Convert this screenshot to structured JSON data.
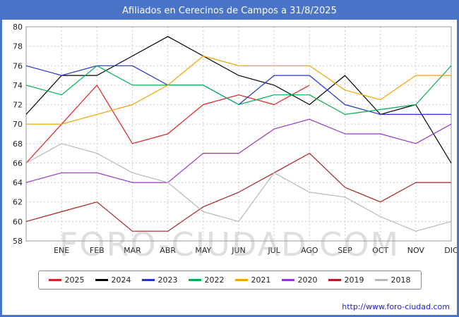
{
  "chart_data": {
    "type": "line",
    "title": "Afiliados en Cerecinos de Campos a 31/8/2025",
    "x_tick_labels": [
      "ENE",
      "FEB",
      "MAR",
      "ABR",
      "MAY",
      "JUN",
      "JUL",
      "AGO",
      "SEP",
      "OCT",
      "NOV",
      "DIC"
    ],
    "ylim": [
      58,
      80
    ],
    "ytick_step": 2,
    "grid": true,
    "legend_position": "bottom",
    "points_layout": "first value of each series sits at the left axis, following values fall on each month gridline",
    "series": [
      {
        "name": "2025",
        "color": "#e02020",
        "values": [
          66,
          70,
          74,
          68,
          69,
          72,
          73,
          72,
          74
        ]
      },
      {
        "name": "2024",
        "color": "#000000",
        "values": [
          71,
          75,
          75,
          77,
          79,
          77,
          75,
          74,
          72,
          75,
          71,
          72,
          66
        ]
      },
      {
        "name": "2023",
        "color": "#2233cc",
        "values": [
          76,
          75,
          76,
          76,
          74,
          74,
          72,
          75,
          75,
          72,
          71,
          71,
          71
        ]
      },
      {
        "name": "2022",
        "color": "#00b050",
        "values": [
          74,
          73,
          76,
          74,
          74,
          74,
          72,
          73,
          73,
          71,
          71.5,
          72,
          76
        ]
      },
      {
        "name": "2021",
        "color": "#f2a200",
        "values": [
          70,
          70,
          71,
          72,
          74,
          77,
          76,
          76,
          76,
          73.5,
          72.5,
          75,
          75
        ]
      },
      {
        "name": "2020",
        "color": "#9933cc",
        "values": [
          64,
          65,
          65,
          64,
          64,
          67,
          67,
          69.5,
          70.5,
          69,
          69,
          68,
          70
        ]
      },
      {
        "name": "2019",
        "color": "#aa2222",
        "values": [
          60,
          61,
          62,
          59,
          59,
          61.5,
          63,
          65,
          67,
          63.5,
          62,
          64,
          64
        ]
      },
      {
        "name": "2018",
        "color": "#b8b8b8",
        "values": [
          66,
          68,
          67,
          65,
          64,
          61,
          60,
          65,
          63,
          62.5,
          60.5,
          59,
          60
        ]
      }
    ]
  },
  "watermark": "FORO-CIUDAD.COM",
  "footer": {
    "url": "http://www.foro-ciudad.com"
  },
  "colors": {
    "frame": "#4a74c8",
    "titlebar_text": "#ffffff",
    "grid": "#c9c9c9",
    "axis": "#999999",
    "url_link": "#2222cc"
  }
}
